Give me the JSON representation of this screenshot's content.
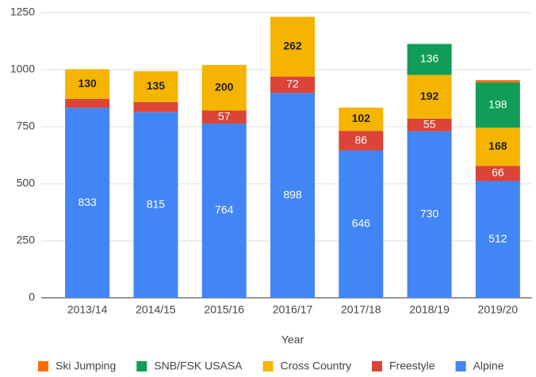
{
  "chart_data": {
    "type": "stacked_bar",
    "x_label": "Year",
    "categories": [
      "2013/14",
      "2014/15",
      "2015/16",
      "2016/17",
      "2017/18",
      "2018/19",
      "2019/20"
    ],
    "series": [
      {
        "name": "Alpine",
        "color": "#4285f4",
        "values": [
          833,
          815,
          764,
          898,
          646,
          730,
          512
        ]
      },
      {
        "name": "Freestyle",
        "color": "#db4437",
        "values": [
          39,
          43,
          57,
          72,
          86,
          55,
          66
        ]
      },
      {
        "name": "Cross Country",
        "color": "#f4b400",
        "values": [
          130,
          135,
          200,
          262,
          102,
          192,
          168
        ]
      },
      {
        "name": "SNB/FSK USASA",
        "color": "#0f9d58",
        "values": [
          null,
          null,
          null,
          null,
          null,
          136,
          198
        ]
      },
      {
        "name": "Ski Jumping",
        "color": "#ff6d00",
        "values": [
          null,
          null,
          null,
          null,
          null,
          null,
          10
        ]
      }
    ],
    "ylim": [
      0,
      1250
    ],
    "yticks": [
      0,
      250,
      500,
      750,
      1000,
      1250
    ],
    "grid": true,
    "legend": "bottom"
  }
}
